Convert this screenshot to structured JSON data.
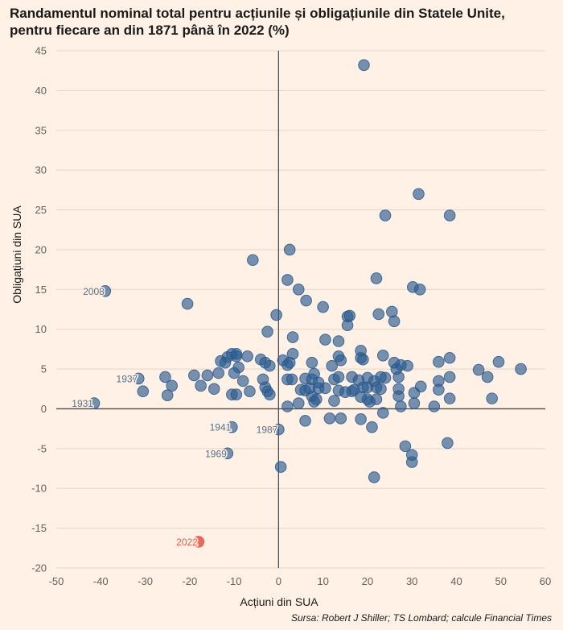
{
  "title_line1": "Randamentul nominal total pentru acțiunile și obligațiunile din Statele Unite,",
  "title_line2": "pentru fiecare an din 1871 până în 2022 (%)",
  "source": "Sursa: Robert J Shiller; TS Lombard; calcule Financial Times",
  "colors": {
    "background": "#fff1e5",
    "point": "#2b5a8f",
    "highlight": "#e8594f",
    "grid": "#e3d5c6",
    "axis": "#4d4d4d",
    "tick_text": "#66605c"
  },
  "chart_data": {
    "type": "scatter",
    "xlabel": "Acțiuni din SUA",
    "ylabel": "Obligațiuni din SUA",
    "xlim": [
      -50,
      60
    ],
    "ylim": [
      -20,
      45
    ],
    "xticks": [
      -50,
      -40,
      -30,
      -20,
      -10,
      0,
      10,
      20,
      30,
      40,
      50,
      60
    ],
    "yticks": [
      -20,
      -15,
      -10,
      -5,
      0,
      5,
      10,
      15,
      20,
      25,
      30,
      35,
      40,
      45
    ],
    "grid": "horizontal",
    "labeled_points": [
      {
        "label": "2008",
        "x": -39,
        "y": 14.8,
        "highlight": false
      },
      {
        "label": "1937",
        "x": -31.5,
        "y": 3.8,
        "highlight": false
      },
      {
        "label": "1931",
        "x": -41.5,
        "y": 0.7,
        "highlight": false
      },
      {
        "label": "1941",
        "x": -10.5,
        "y": -2.3,
        "highlight": false
      },
      {
        "label": "1987",
        "x": 0,
        "y": -2.6,
        "highlight": false
      },
      {
        "label": "1969",
        "x": -11.5,
        "y": -5.6,
        "highlight": false
      },
      {
        "label": "2022",
        "x": -18,
        "y": -16.7,
        "highlight": true
      }
    ],
    "points": [
      [
        19.2,
        43.2
      ],
      [
        31.5,
        27
      ],
      [
        24,
        24.3
      ],
      [
        38.5,
        24.3
      ],
      [
        2.5,
        20
      ],
      [
        -5.8,
        18.7
      ],
      [
        22,
        16.4
      ],
      [
        2,
        16.2
      ],
      [
        4.5,
        15
      ],
      [
        30.2,
        15.3
      ],
      [
        31.8,
        15
      ],
      [
        -20.5,
        13.2
      ],
      [
        6.2,
        13.6
      ],
      [
        10,
        12.8
      ],
      [
        25.5,
        12.2
      ],
      [
        22.5,
        11.9
      ],
      [
        15.5,
        11.6
      ],
      [
        16,
        11.7
      ],
      [
        -0.5,
        11.8
      ],
      [
        26,
        11
      ],
      [
        15.5,
        10.5
      ],
      [
        -2.5,
        9.7
      ],
      [
        3.2,
        9
      ],
      [
        10.5,
        8.7
      ],
      [
        13.5,
        8.5
      ],
      [
        18.5,
        7.3
      ],
      [
        3.2,
        6.9
      ],
      [
        -10.5,
        6.9
      ],
      [
        -11.5,
        6.5
      ],
      [
        -9.5,
        6.9
      ],
      [
        -9.5,
        6.6
      ],
      [
        -7,
        6.6
      ],
      [
        -13,
        6
      ],
      [
        -4,
        6.2
      ],
      [
        -3,
        5.8
      ],
      [
        1,
        6.1
      ],
      [
        2.5,
        5.8
      ],
      [
        2,
        5.5
      ],
      [
        7.5,
        5.8
      ],
      [
        13.5,
        6.6
      ],
      [
        14,
        6.1
      ],
      [
        18.5,
        6.4
      ],
      [
        23.5,
        6.7
      ],
      [
        26,
        5.8
      ],
      [
        27.5,
        5.5
      ],
      [
        29,
        5.4
      ],
      [
        36,
        5.9
      ],
      [
        38.5,
        6.4
      ],
      [
        -12,
        5.8
      ],
      [
        -9,
        5.2
      ],
      [
        -2,
        5.4
      ],
      [
        12,
        5.4
      ],
      [
        19,
        6.2
      ],
      [
        26.5,
        5
      ],
      [
        45,
        4.9
      ],
      [
        49.5,
        5.9
      ],
      [
        54.5,
        5
      ],
      [
        -25.5,
        4
      ],
      [
        -19,
        4.2
      ],
      [
        -16,
        4.2
      ],
      [
        -13.5,
        4.5
      ],
      [
        -10,
        4.5
      ],
      [
        -8,
        3.5
      ],
      [
        -3.5,
        3.7
      ],
      [
        2,
        3.7
      ],
      [
        3,
        3.7
      ],
      [
        6,
        3.8
      ],
      [
        7.5,
        3.7
      ],
      [
        8,
        4.4
      ],
      [
        9,
        3.3
      ],
      [
        12.5,
        3.7
      ],
      [
        13.5,
        4
      ],
      [
        16.5,
        4
      ],
      [
        18,
        3.6
      ],
      [
        20,
        3.9
      ],
      [
        21.5,
        3.5
      ],
      [
        23,
        4
      ],
      [
        24,
        3.9
      ],
      [
        27,
        4
      ],
      [
        36,
        3.5
      ],
      [
        38.5,
        4
      ],
      [
        47,
        4
      ],
      [
        -24,
        2.9
      ],
      [
        -17.5,
        2.9
      ],
      [
        -14.5,
        2.5
      ],
      [
        -6.5,
        2.2
      ],
      [
        -3,
        2.7
      ],
      [
        -2.5,
        2.2
      ],
      [
        5,
        2.4
      ],
      [
        6,
        2.3
      ],
      [
        7,
        2.6
      ],
      [
        9,
        2.6
      ],
      [
        10.5,
        2.6
      ],
      [
        13.5,
        2.3
      ],
      [
        15,
        2.1
      ],
      [
        16.5,
        2.2
      ],
      [
        17,
        2.4
      ],
      [
        19,
        2.7
      ],
      [
        20,
        2.7
      ],
      [
        22,
        2.7
      ],
      [
        23,
        2.5
      ],
      [
        27,
        2.5
      ],
      [
        30.5,
        2
      ],
      [
        32,
        2.8
      ],
      [
        36,
        2.4
      ],
      [
        -30.5,
        2.2
      ],
      [
        -25,
        1.7
      ],
      [
        -10.5,
        1.8
      ],
      [
        -9.5,
        1.8
      ],
      [
        -2,
        1.8
      ],
      [
        7.5,
        1.6
      ],
      [
        8.5,
        1.2
      ],
      [
        18.5,
        1.5
      ],
      [
        20,
        1.2
      ],
      [
        22,
        1.2
      ],
      [
        27,
        1.6
      ],
      [
        38.5,
        1.3
      ],
      [
        48,
        1.3
      ],
      [
        4.5,
        0.7
      ],
      [
        8,
        0.9
      ],
      [
        12.5,
        1
      ],
      [
        20.5,
        0.9
      ],
      [
        27.5,
        0.3
      ],
      [
        30.5,
        0.7
      ],
      [
        35,
        0.3
      ],
      [
        2,
        0.3
      ],
      [
        11.5,
        -1.2
      ],
      [
        14,
        -1.2
      ],
      [
        18.5,
        -1.3
      ],
      [
        6,
        -1.5
      ],
      [
        21,
        -2.3
      ],
      [
        23.5,
        -0.5
      ],
      [
        28.5,
        -4.7
      ],
      [
        38,
        -4.3
      ],
      [
        30,
        -5.8
      ],
      [
        30,
        -6.7
      ],
      [
        0.5,
        -7.3
      ],
      [
        21.5,
        -8.6
      ]
    ]
  }
}
